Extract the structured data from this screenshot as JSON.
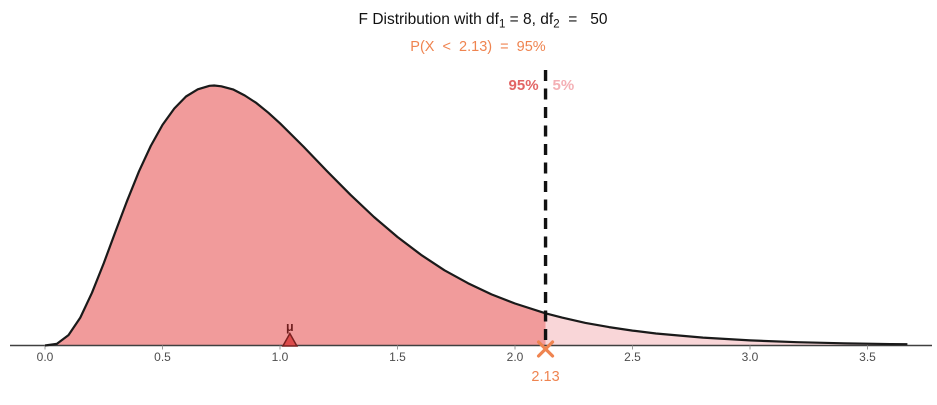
{
  "page": {
    "background": "#ffffff"
  },
  "chart_data": {
    "type": "area",
    "distribution": "F",
    "df1": 8,
    "df2": 50,
    "title": "F Distribution with df1 = 8, df2 = 50",
    "title_parts": [
      "F Distribution with df",
      "1",
      " = 8, df",
      "2",
      "  =   50"
    ],
    "subtitle": "P(X < 2.13) = 95%",
    "subtitle_display": "P(X  <  2.13)  =  95%",
    "xlabel": "",
    "ylabel": "",
    "xlim": [
      0,
      3.77
    ],
    "ylim": [
      0,
      0.88
    ],
    "grid": false,
    "legend": "none",
    "x_ticks": [
      0.0,
      0.5,
      1.0,
      1.5,
      2.0,
      2.5,
      3.0,
      3.5
    ],
    "x_tick_labels": [
      "0.0",
      "0.5",
      "1.0",
      "1.5",
      "2.0",
      "2.5",
      "3.0",
      "3.5"
    ],
    "critical_value": 2.13,
    "critical_value_label": "2.13",
    "left_area": 0.95,
    "left_area_label": "95%",
    "right_area": 0.05,
    "right_area_label": "5%",
    "mean": 1.042,
    "mean_label": "μ",
    "curve": {
      "x": [
        0,
        0.05,
        0.1,
        0.15,
        0.2,
        0.25,
        0.3,
        0.35,
        0.4,
        0.45,
        0.5,
        0.55,
        0.6,
        0.65,
        0.7,
        0.72,
        0.75,
        0.8,
        0.85,
        0.9,
        0.95,
        1.0,
        1.1,
        1.2,
        1.3,
        1.4,
        1.5,
        1.6,
        1.7,
        1.8,
        1.9,
        2.0,
        2.13,
        2.2,
        2.3,
        2.4,
        2.5,
        2.6,
        2.8,
        3.0,
        3.2,
        3.4,
        3.5,
        3.6,
        3.67
      ],
      "pdf": [
        0,
        0.0053,
        0.0339,
        0.0911,
        0.1722,
        0.269,
        0.372,
        0.4738,
        0.5685,
        0.6513,
        0.7199,
        0.7736,
        0.8128,
        0.8363,
        0.8476,
        0.8486,
        0.8459,
        0.8357,
        0.816,
        0.7912,
        0.7598,
        0.7252,
        0.6491,
        0.5693,
        0.4918,
        0.4194,
        0.354,
        0.2959,
        0.2455,
        0.2032,
        0.1668,
        0.137,
        0.1052,
        0.091,
        0.0739,
        0.0599,
        0.0485,
        0.0393,
        0.0257,
        0.0167,
        0.0109,
        0.0071,
        0.0058,
        0.0047,
        0.0041
      ]
    },
    "colors": {
      "fill_left": "#F19B9B",
      "fill_right": "#F9D6D8",
      "curve_stroke": "#1A1A1A",
      "dashed_line": "#111111",
      "left_label": "#E26565",
      "right_label": "#F4B0B5",
      "accent_orange": "#EF8450",
      "mean_marker_fill": "#DC4B4B",
      "mean_marker_stroke": "#7A2020",
      "mean_text": "#6E1E1E",
      "axis": "#404040",
      "tick": "#999999",
      "tick_label": "#4D4D4D"
    }
  }
}
